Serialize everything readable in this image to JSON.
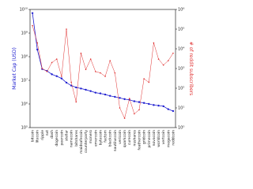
{
  "chart_data": {
    "type": "dual-log-line",
    "ylabel": "Market Cap (USD)",
    "y2label": "# of reddit subscribers",
    "categories": [
      "bitcoin",
      "litecoin",
      "ripple",
      "nxt",
      "dash",
      "dogecoin",
      "peercoin",
      "stellar",
      "namecoin",
      "bitshares",
      "maidsafecoin",
      "counterparty",
      "monero",
      "emercoin",
      "bytecoin",
      "factom",
      "blackcoin",
      "nautiluscoin",
      "vericoin",
      "quarkcoin",
      "curecoin",
      "nushares",
      "feathercoin",
      "gridcoin",
      "primecoin",
      "novacoin",
      "worldcoin",
      "vertcoin",
      "megacoin",
      "reddcoin"
    ],
    "series": [
      {
        "name": "Market Cap (USD)",
        "color": "#1f1fd0",
        "axis": "y",
        "values": [
          7000000000,
          200000000,
          30000000,
          25000000,
          18000000,
          15000000,
          12000000,
          8000000,
          6000000,
          5000000,
          4500000,
          4000000,
          3500000,
          3000000,
          2800000,
          2500000,
          2200000,
          2000000,
          1800000,
          1600000,
          1500000,
          1300000,
          1200000,
          1100000,
          1000000,
          900000,
          850000,
          800000,
          600000,
          500000
        ]
      },
      {
        "name": "# of reddit subscribers",
        "color": "#e03030",
        "axis": "y2",
        "values": [
          150000,
          20000,
          1000,
          700,
          2000,
          3000,
          400,
          100000,
          200,
          20,
          6000,
          900,
          3000,
          700,
          600,
          400,
          2500,
          600,
          10,
          3,
          30,
          5,
          8,
          300,
          200,
          20000,
          3000,
          1500,
          2500,
          6000
        ]
      }
    ],
    "ylim": [
      100000,
      10000000000
    ],
    "yticks": [
      {
        "value": 100000,
        "label": "10⁵"
      },
      {
        "value": 1000000,
        "label": "10⁶"
      },
      {
        "value": 10000000,
        "label": "10⁷"
      },
      {
        "value": 100000000,
        "label": "10⁸"
      },
      {
        "value": 1000000000,
        "label": "10⁹"
      },
      {
        "value": 10000000000,
        "label": "10¹⁰"
      }
    ],
    "y2lim": [
      1,
      1000000
    ],
    "y2ticks": [
      {
        "value": 1,
        "label": "10⁰"
      },
      {
        "value": 10,
        "label": "10¹"
      },
      {
        "value": 100,
        "label": "10²"
      },
      {
        "value": 1000,
        "label": "10³"
      },
      {
        "value": 10000,
        "label": "10⁴"
      },
      {
        "value": 100000,
        "label": "10⁵"
      },
      {
        "value": 1000000,
        "label": "10⁶"
      }
    ],
    "log_scale": true
  }
}
